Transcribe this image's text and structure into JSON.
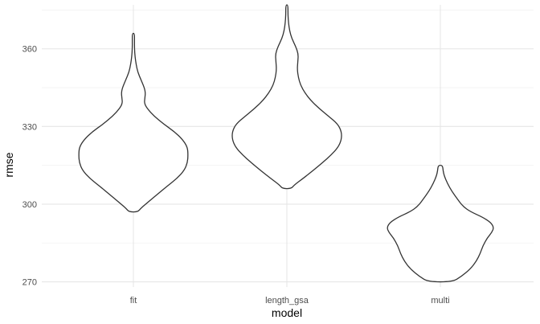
{
  "chart_data": {
    "type": "violin",
    "title": "",
    "xlabel": "model",
    "ylabel": "rmse",
    "categories": [
      "fit",
      "length_gsa",
      "multi"
    ],
    "ylim": [
      268,
      377
    ],
    "y_ticks": [
      270,
      300,
      330,
      360
    ],
    "grid": true,
    "legend": "none",
    "colors": {
      "outline": "#333333",
      "fill": "#ffffff",
      "grid_major": "#e6e6e6",
      "grid_minor": "#f2f2f2"
    },
    "violins": [
      {
        "category": "fit",
        "profile": [
          [
            297.0,
            0.08
          ],
          [
            298.5,
            0.14
          ],
          [
            301.0,
            0.28
          ],
          [
            304.0,
            0.45
          ],
          [
            307.0,
            0.62
          ],
          [
            310.0,
            0.8
          ],
          [
            313.0,
            0.93
          ],
          [
            316.0,
            0.99
          ],
          [
            319.0,
            1.0
          ],
          [
            322.0,
            0.99
          ],
          [
            325.0,
            0.9
          ],
          [
            328.0,
            0.75
          ],
          [
            331.0,
            0.55
          ],
          [
            334.0,
            0.38
          ],
          [
            337.0,
            0.25
          ],
          [
            339.0,
            0.2
          ],
          [
            341.0,
            0.21
          ],
          [
            343.0,
            0.22
          ],
          [
            345.0,
            0.2
          ],
          [
            348.0,
            0.14
          ],
          [
            351.0,
            0.08
          ],
          [
            354.0,
            0.05
          ],
          [
            357.0,
            0.03
          ],
          [
            360.0,
            0.02
          ],
          [
            363.0,
            0.02
          ],
          [
            366.0,
            0.02
          ]
        ]
      },
      {
        "category": "length_gsa",
        "profile": [
          [
            306.0,
            0.08
          ],
          [
            307.5,
            0.14
          ],
          [
            310.0,
            0.3
          ],
          [
            313.0,
            0.48
          ],
          [
            316.0,
            0.65
          ],
          [
            319.0,
            0.81
          ],
          [
            322.0,
            0.94
          ],
          [
            325.0,
            1.0
          ],
          [
            328.0,
            1.0
          ],
          [
            331.0,
            0.93
          ],
          [
            334.0,
            0.76
          ],
          [
            337.0,
            0.59
          ],
          [
            340.0,
            0.44
          ],
          [
            343.0,
            0.33
          ],
          [
            346.0,
            0.25
          ],
          [
            349.0,
            0.21
          ],
          [
            352.0,
            0.19
          ],
          [
            355.0,
            0.2
          ],
          [
            358.0,
            0.21
          ],
          [
            361.0,
            0.16
          ],
          [
            364.0,
            0.09
          ],
          [
            367.0,
            0.05
          ],
          [
            370.0,
            0.03
          ],
          [
            373.0,
            0.02
          ],
          [
            377.0,
            0.02
          ]
        ]
      },
      {
        "category": "multi",
        "profile": [
          [
            270.0,
            0.22
          ],
          [
            272.0,
            0.38
          ],
          [
            275.0,
            0.55
          ],
          [
            278.0,
            0.66
          ],
          [
            281.0,
            0.73
          ],
          [
            284.0,
            0.78
          ],
          [
            287.0,
            0.86
          ],
          [
            289.0,
            0.94
          ],
          [
            291.0,
            0.98
          ],
          [
            293.0,
            0.92
          ],
          [
            295.0,
            0.77
          ],
          [
            297.0,
            0.56
          ],
          [
            299.0,
            0.42
          ],
          [
            302.0,
            0.31
          ],
          [
            305.0,
            0.21
          ],
          [
            308.0,
            0.13
          ],
          [
            311.0,
            0.07
          ],
          [
            313.0,
            0.05
          ],
          [
            315.0,
            0.04
          ]
        ]
      }
    ]
  }
}
